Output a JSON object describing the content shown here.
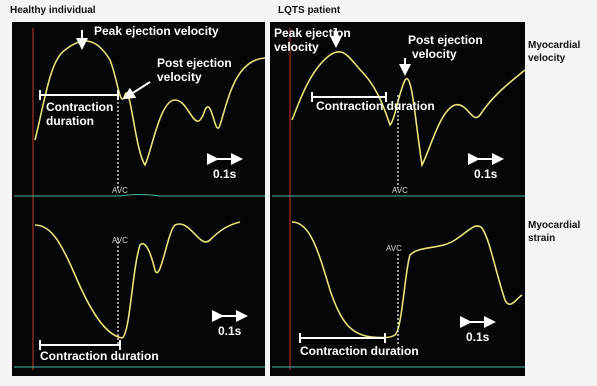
{
  "titles": [
    "Healthy individual",
    "LQTS patient"
  ],
  "row_labels": [
    [
      "Myocardial",
      "velocity"
    ],
    [
      "Myocardial",
      "strain"
    ]
  ],
  "panels": [
    {
      "velocity": {
        "peak": "Peak ejection velocity",
        "post": [
          "Post ejection",
          "velocity"
        ],
        "duration": [
          "Contraction",
          "duration"
        ],
        "avc": "AVC",
        "scale": "0.1s"
      },
      "strain": {
        "avc": "AVC",
        "duration": "Contraction duration",
        "scale": "0.1s"
      }
    },
    {
      "velocity": {
        "peak": [
          "Peak ejection",
          "velocity"
        ],
        "post": [
          "Post ejection",
          "velocity"
        ],
        "duration": "Contraction duration",
        "avc": "AVC",
        "scale": "0.1s"
      },
      "strain": {
        "avc": "AVC",
        "duration": "Contraction duration",
        "scale": "0.1s"
      }
    }
  ]
}
